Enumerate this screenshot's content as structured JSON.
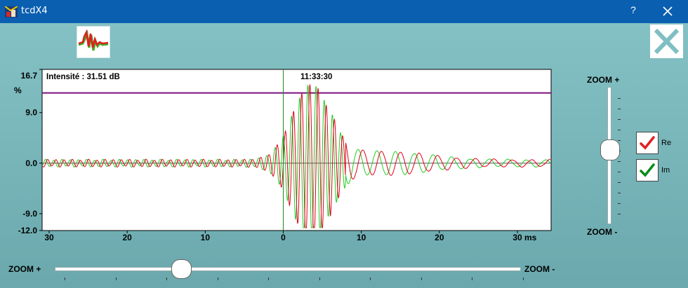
{
  "window": {
    "title": "tcdX4",
    "help_label": "?"
  },
  "toolbar": {
    "wave_button_icon": "waveform-icon",
    "exit_button_icon": "big-x-icon"
  },
  "chart_data": {
    "type": "line",
    "info": {
      "intensity_label": "Intensité : 31.51 dB",
      "time_label": "11:33:30"
    },
    "ylabel": "%",
    "xlabel": "ms",
    "ylim": [
      -12.0,
      16.7
    ],
    "y_ticks": [
      "16.7",
      "9.0",
      "0.0",
      "-9.0",
      "-12.0"
    ],
    "x_tick_labels": [
      "30",
      "20",
      "10",
      "0",
      "10",
      "20",
      "30"
    ],
    "xlim": [
      -30,
      30
    ],
    "threshold_value": 12.5,
    "cursor_x": 0,
    "grid": false,
    "series": [
      {
        "name": "Re",
        "color": "#e0001a"
      },
      {
        "name": "Im",
        "color": "#22cc22"
      }
    ]
  },
  "zoom_vertical": {
    "plus_label": "ZOOM +",
    "minus_label": "ZOOM -",
    "level": 0.46
  },
  "zoom_horizontal": {
    "plus_label": "ZOOM +",
    "minus_label": "ZOOM -",
    "level": 0.27
  },
  "toggles": [
    {
      "label": "Re",
      "checked": true,
      "color": "#e02020"
    },
    {
      "label": "Im",
      "checked": true,
      "color": "#0a8a1a"
    }
  ]
}
